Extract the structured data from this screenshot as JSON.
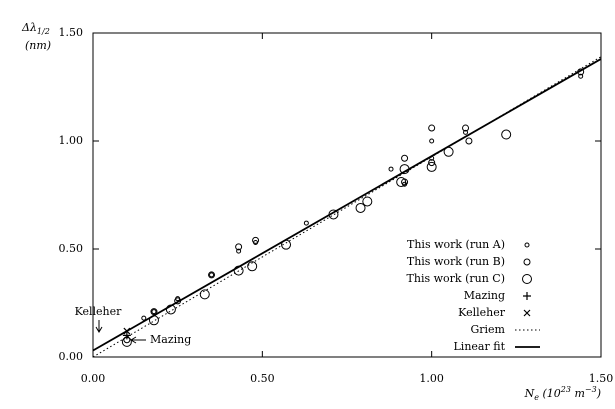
{
  "chart_data": {
    "type": "scatter",
    "y_label": {
      "parts": [
        {
          "text": "Δλ"
        },
        {
          "text": "1/2",
          "shift": "sub"
        }
      ],
      "unit": "(nm)"
    },
    "x_label": {
      "parts": [
        {
          "text": "N"
        },
        {
          "text": "e",
          "shift": "sub"
        },
        {
          "text": " (10"
        },
        {
          "text": "23",
          "shift": "sup"
        },
        {
          "text": " m"
        },
        {
          "text": "−3",
          "shift": "sup"
        },
        {
          "text": ")"
        }
      ]
    },
    "xlim": [
      0,
      1.5
    ],
    "ylim": [
      0,
      1.5
    ],
    "xticks": [
      {
        "value": 0,
        "label": "0.00"
      },
      {
        "value": 0.5,
        "label": "0.50"
      },
      {
        "value": 1,
        "label": "1.00"
      },
      {
        "value": 1.5,
        "label": "1.50"
      }
    ],
    "yticks": [
      {
        "value": 0,
        "label": "0.00"
      },
      {
        "value": 0.5,
        "label": "0.50"
      },
      {
        "value": 1,
        "label": "1.00"
      },
      {
        "value": 1.5,
        "label": "1.50"
      }
    ],
    "color": "#000000",
    "series": [
      {
        "name": "This work (run A)",
        "marker": "circle-small",
        "x": [
          0.15,
          0.18,
          0.25,
          0.35,
          0.43,
          0.48,
          0.63,
          0.88,
          0.92,
          1.0,
          1.0,
          1.1,
          1.44
        ],
        "values": [
          0.18,
          0.21,
          0.27,
          0.38,
          0.49,
          0.53,
          0.62,
          0.87,
          0.8,
          1.0,
          0.92,
          1.04,
          1.3
        ]
      },
      {
        "name": "This work (run B)",
        "marker": "circle-medium",
        "x": [
          0.1,
          0.18,
          0.25,
          0.35,
          0.43,
          0.48,
          0.92,
          1.0,
          1.0,
          1.1,
          1.11,
          1.44,
          0.92
        ],
        "values": [
          0.08,
          0.21,
          0.26,
          0.38,
          0.51,
          0.54,
          0.92,
          1.06,
          0.9,
          1.06,
          1.0,
          1.32,
          0.81
        ]
      },
      {
        "name": "This work (run C)",
        "marker": "circle-large",
        "x": [
          0.1,
          0.18,
          0.23,
          0.33,
          0.43,
          0.47,
          0.57,
          0.71,
          0.79,
          0.81,
          0.91,
          0.92,
          1.0,
          1.05,
          1.22
        ],
        "values": [
          0.07,
          0.17,
          0.22,
          0.29,
          0.4,
          0.42,
          0.52,
          0.66,
          0.69,
          0.72,
          0.81,
          0.87,
          0.88,
          0.95,
          1.03
        ]
      },
      {
        "name": "Mazing",
        "marker": "plus",
        "x": [
          0.1
        ],
        "values": [
          0.1
        ]
      },
      {
        "name": "Kelleher",
        "marker": "cross",
        "x": [
          0.1
        ],
        "values": [
          0.12
        ]
      },
      {
        "name": "Griem",
        "line": "dotted",
        "x": [
          0,
          1.5
        ],
        "values": [
          0,
          1.39
        ]
      },
      {
        "name": "Linear fit",
        "line": "solid",
        "x": [
          0,
          1.5
        ],
        "values": [
          0.03,
          1.38
        ]
      }
    ],
    "annotations": [
      "Kelleher",
      "Mazing"
    ]
  }
}
